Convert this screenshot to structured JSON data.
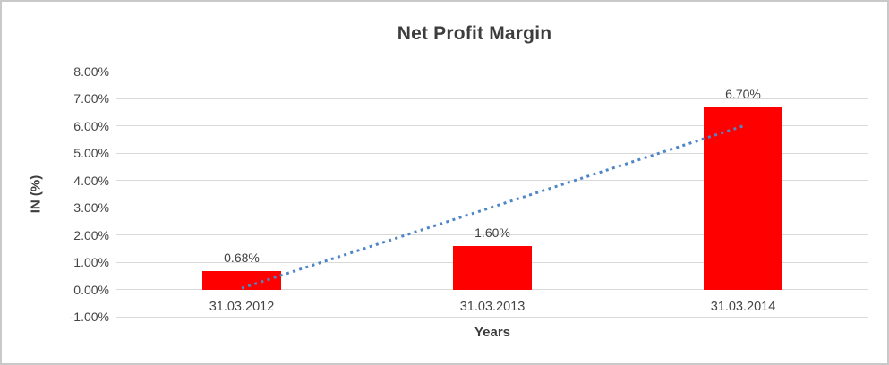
{
  "chart_data": {
    "type": "bar",
    "title": "Net Profit Margin",
    "xlabel": "Years",
    "ylabel": "IN (%)",
    "categories": [
      "31.03.2012",
      "31.03.2013",
      "31.03.2014"
    ],
    "values": [
      0.68,
      1.6,
      6.7
    ],
    "data_labels": [
      "0.68%",
      "1.60%",
      "6.70%"
    ],
    "y_ticks": [
      "8.00%",
      "7.00%",
      "6.00%",
      "5.00%",
      "4.00%",
      "3.00%",
      "2.00%",
      "1.00%",
      "0.00%",
      "-1.00%"
    ],
    "y_tick_values": [
      8,
      7,
      6,
      5,
      4,
      3,
      2,
      1,
      0,
      -1
    ],
    "ylim": [
      -1,
      8
    ],
    "grid": true,
    "legend": false,
    "bar_color": "#ff0000",
    "gridline_color": "#d9d9d9",
    "text_color": "#404040",
    "trendline": {
      "type": "linear",
      "style": "dotted",
      "color": "#4f86c6",
      "start_value": 0.05,
      "end_value": 6.0
    }
  }
}
